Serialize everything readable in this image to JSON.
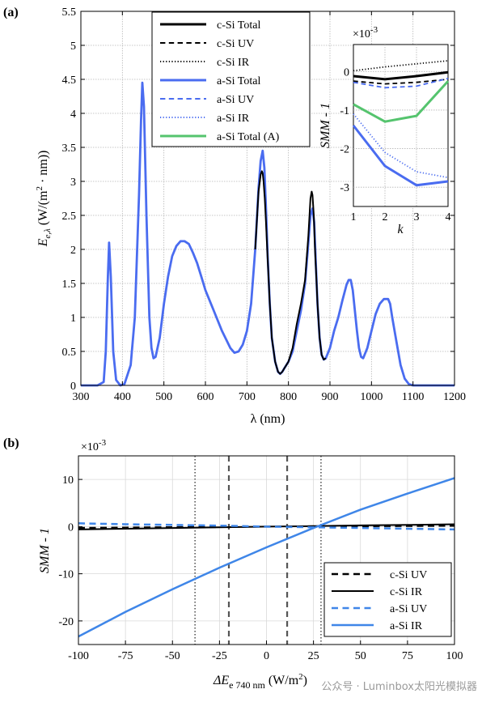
{
  "figure": {
    "watermark": "公众号 · Luminbox太阳光模拟器"
  },
  "chart_data": [
    {
      "panel_label": "(a)",
      "type": "line",
      "xlabel": "λ (nm)",
      "ylabel": "E",
      "ylabel_sub": "e,λ",
      "ylabel_units": " (W/(m",
      "ylabel_units_sup": "2",
      "ylabel_units_tail": " · nm))",
      "xlim": [
        300,
        1200
      ],
      "ylim": [
        0,
        5.5
      ],
      "xticks": [
        "300",
        "400",
        "500",
        "600",
        "700",
        "800",
        "900",
        "1000",
        "1100",
        "1200"
      ],
      "yticks": [
        "0",
        "0.5",
        "1",
        "1.5",
        "2",
        "2.5",
        "3",
        "3.5",
        "4",
        "4.5",
        "5",
        "5.5"
      ],
      "grid": true,
      "legend_position": "top-center",
      "legend": [
        {
          "label": "c-Si Total",
          "color": "#000000",
          "style": "solid",
          "width": 3
        },
        {
          "label": "c-Si UV",
          "color": "#000000",
          "style": "dashed",
          "width": 2
        },
        {
          "label": "c-Si IR",
          "color": "#000000",
          "style": "dotted",
          "width": 2
        },
        {
          "label": "a-Si Total",
          "color": "#4a6cf0",
          "style": "solid",
          "width": 3
        },
        {
          "label": "a-Si UV",
          "color": "#4a6cf0",
          "style": "dashed",
          "width": 2
        },
        {
          "label": "a-Si IR",
          "color": "#4a6cf0",
          "style": "dotted",
          "width": 2
        },
        {
          "label": "a-Si Total (A)",
          "color": "#55c46e",
          "style": "solid",
          "width": 3
        }
      ],
      "series": [
        {
          "name": "a-Si Total",
          "color": "#4a6cf0",
          "x": [
            300,
            340,
            355,
            360,
            365,
            368,
            372,
            378,
            385,
            395,
            405,
            420,
            430,
            440,
            445,
            448,
            452,
            458,
            465,
            470,
            475,
            480,
            490,
            500,
            510,
            520,
            530,
            540,
            550,
            560,
            570,
            580,
            590,
            600,
            620,
            640,
            660,
            670,
            680,
            690,
            700,
            710,
            720,
            728,
            733,
            738,
            742,
            746,
            750,
            755,
            760,
            768,
            775,
            780,
            785,
            790,
            795,
            800,
            810,
            820,
            830,
            840,
            848,
            853,
            858,
            862,
            866,
            870,
            875,
            880,
            885,
            890,
            900,
            910,
            920,
            930,
            940,
            945,
            950,
            955,
            960,
            965,
            970,
            975,
            980,
            990,
            1000,
            1010,
            1020,
            1030,
            1040,
            1045,
            1050,
            1060,
            1070,
            1080,
            1090,
            1100,
            1110,
            1120,
            1200
          ],
          "y": [
            0,
            0,
            0.05,
            0.5,
            1.6,
            2.1,
            1.6,
            0.5,
            0.08,
            0,
            0.02,
            0.3,
            1.0,
            2.8,
            3.9,
            4.45,
            4.1,
            2.5,
            1.0,
            0.55,
            0.4,
            0.42,
            0.7,
            1.2,
            1.6,
            1.9,
            2.05,
            2.12,
            2.12,
            2.08,
            1.95,
            1.8,
            1.6,
            1.4,
            1.1,
            0.8,
            0.55,
            0.48,
            0.5,
            0.6,
            0.8,
            1.2,
            2.0,
            2.9,
            3.3,
            3.45,
            3.2,
            2.6,
            1.9,
            1.2,
            0.7,
            0.35,
            0.2,
            0.17,
            0.2,
            0.25,
            0.3,
            0.35,
            0.5,
            0.8,
            1.1,
            1.5,
            2.1,
            2.5,
            2.6,
            2.4,
            1.8,
            1.2,
            0.7,
            0.45,
            0.38,
            0.4,
            0.55,
            0.8,
            1.0,
            1.25,
            1.48,
            1.55,
            1.55,
            1.4,
            1.1,
            0.8,
            0.55,
            0.42,
            0.4,
            0.55,
            0.8,
            1.05,
            1.2,
            1.27,
            1.27,
            1.2,
            1.0,
            0.65,
            0.3,
            0.1,
            0.02,
            0,
            0,
            0,
            0
          ]
        },
        {
          "name": "c-Si Total",
          "color": "#000000",
          "x": [
            720,
            728,
            733,
            736,
            738,
            740,
            743,
            746,
            750,
            755,
            760,
            768,
            775,
            780,
            785,
            790,
            795,
            800,
            810,
            820,
            830,
            840,
            848,
            853,
            856,
            858,
            861,
            864,
            867,
            870,
            875,
            880,
            885,
            890
          ],
          "y": [
            2.0,
            2.85,
            3.1,
            3.15,
            3.12,
            3.0,
            2.75,
            2.4,
            1.85,
            1.2,
            0.7,
            0.35,
            0.2,
            0.17,
            0.2,
            0.25,
            0.3,
            0.35,
            0.55,
            0.9,
            1.2,
            1.55,
            2.2,
            2.75,
            2.85,
            2.8,
            2.5,
            2.0,
            1.6,
            1.2,
            0.7,
            0.45,
            0.38,
            0.4
          ]
        }
      ],
      "inset": {
        "type": "line",
        "exponent_label": "×10",
        "exponent_sup": "-3",
        "xlabel": "k",
        "ylabel": "SMM - 1",
        "xlim": [
          1,
          4
        ],
        "ylim": [
          -3.5,
          0.7
        ],
        "xticks": [
          "1",
          "2",
          "3",
          "4"
        ],
        "yticks": [
          "-3",
          "-2",
          "-1",
          "0"
        ],
        "x": [
          1,
          2,
          3,
          4
        ],
        "series": [
          {
            "name": "c-Si Total",
            "color": "#000000",
            "style": "solid",
            "width": 3,
            "values": [
              -0.12,
              -0.2,
              -0.12,
              -0.02
            ]
          },
          {
            "name": "c-Si UV",
            "color": "#000000",
            "style": "dashed",
            "width": 1.8,
            "values": [
              -0.25,
              -0.32,
              -0.28,
              -0.2
            ]
          },
          {
            "name": "c-Si IR",
            "color": "#000000",
            "style": "dotted",
            "width": 1.8,
            "values": [
              0.02,
              0.12,
              0.2,
              0.28
            ]
          },
          {
            "name": "a-Si Total",
            "color": "#4a6cf0",
            "style": "solid",
            "width": 3,
            "values": [
              -1.4,
              -2.45,
              -2.95,
              -2.85
            ]
          },
          {
            "name": "a-Si UV",
            "color": "#4a6cf0",
            "style": "dashed",
            "width": 1.8,
            "values": [
              -0.28,
              -0.42,
              -0.38,
              -0.18
            ]
          },
          {
            "name": "a-Si IR",
            "color": "#4a6cf0",
            "style": "dotted",
            "width": 1.8,
            "values": [
              -1.1,
              -2.1,
              -2.6,
              -2.75
            ]
          },
          {
            "name": "a-Si Total (A)",
            "color": "#55c46e",
            "style": "solid",
            "width": 3,
            "values": [
              -0.85,
              -1.3,
              -1.15,
              -0.25
            ]
          }
        ]
      }
    },
    {
      "panel_label": "(b)",
      "type": "line",
      "exponent_label": "×10",
      "exponent_sup": "-3",
      "xlabel": "ΔE",
      "xlabel_sub": "e 740 nm",
      "xlabel_units": " (W/m",
      "xlabel_units_sup": "2",
      "xlabel_units_tail": ")",
      "ylabel": "SMM - 1",
      "xlim": [
        -100,
        100
      ],
      "ylim": [
        -25,
        15
      ],
      "xticks": [
        "-100",
        "-75",
        "-50",
        "-25",
        "0",
        "25",
        "50",
        "75",
        "100"
      ],
      "yticks": [
        "-20",
        "-10",
        "0",
        "10"
      ],
      "grid": true,
      "legend_position": "bottom-right",
      "legend": [
        {
          "label": "c-Si UV",
          "color": "#000000",
          "style": "dashed",
          "width": 2.5
        },
        {
          "label": "c-Si IR",
          "color": "#000000",
          "style": "solid",
          "width": 2
        },
        {
          "label": "a-Si UV",
          "color": "#3f86e8",
          "style": "dashed",
          "width": 2.5
        },
        {
          "label": "a-Si IR",
          "color": "#3f86e8",
          "style": "solid",
          "width": 2.5
        }
      ],
      "x": [
        -100,
        -75,
        -50,
        -25,
        0,
        25,
        50,
        75,
        100
      ],
      "series": [
        {
          "name": "c-Si UV",
          "color": "#000000",
          "style": "dashed",
          "width": 2.5,
          "values": [
            -0.3,
            -0.22,
            -0.15,
            -0.08,
            0,
            0.05,
            0.1,
            0.15,
            0.2
          ]
        },
        {
          "name": "c-Si IR",
          "color": "#000000",
          "style": "solid",
          "width": 2,
          "values": [
            -0.6,
            -0.45,
            -0.3,
            -0.15,
            0,
            0.1,
            0.25,
            0.35,
            0.5
          ]
        },
        {
          "name": "a-Si UV",
          "color": "#3f86e8",
          "style": "dashed",
          "width": 2.5,
          "values": [
            0.7,
            0.5,
            0.35,
            0.2,
            0,
            -0.15,
            -0.3,
            -0.45,
            -0.6
          ]
        },
        {
          "name": "a-Si IR",
          "color": "#3f86e8",
          "style": "solid",
          "width": 2.5,
          "values": [
            -23.3,
            -18.1,
            -13.3,
            -8.7,
            -4.4,
            -0.3,
            3.6,
            7.0,
            10.3
          ]
        }
      ],
      "vlines": [
        {
          "x": -38,
          "style": "dotted",
          "color": "#555555"
        },
        {
          "x": -20,
          "style": "dashed",
          "color": "#555555"
        },
        {
          "x": 11,
          "style": "dashed",
          "color": "#555555"
        },
        {
          "x": 29,
          "style": "dotted",
          "color": "#555555"
        }
      ]
    }
  ]
}
